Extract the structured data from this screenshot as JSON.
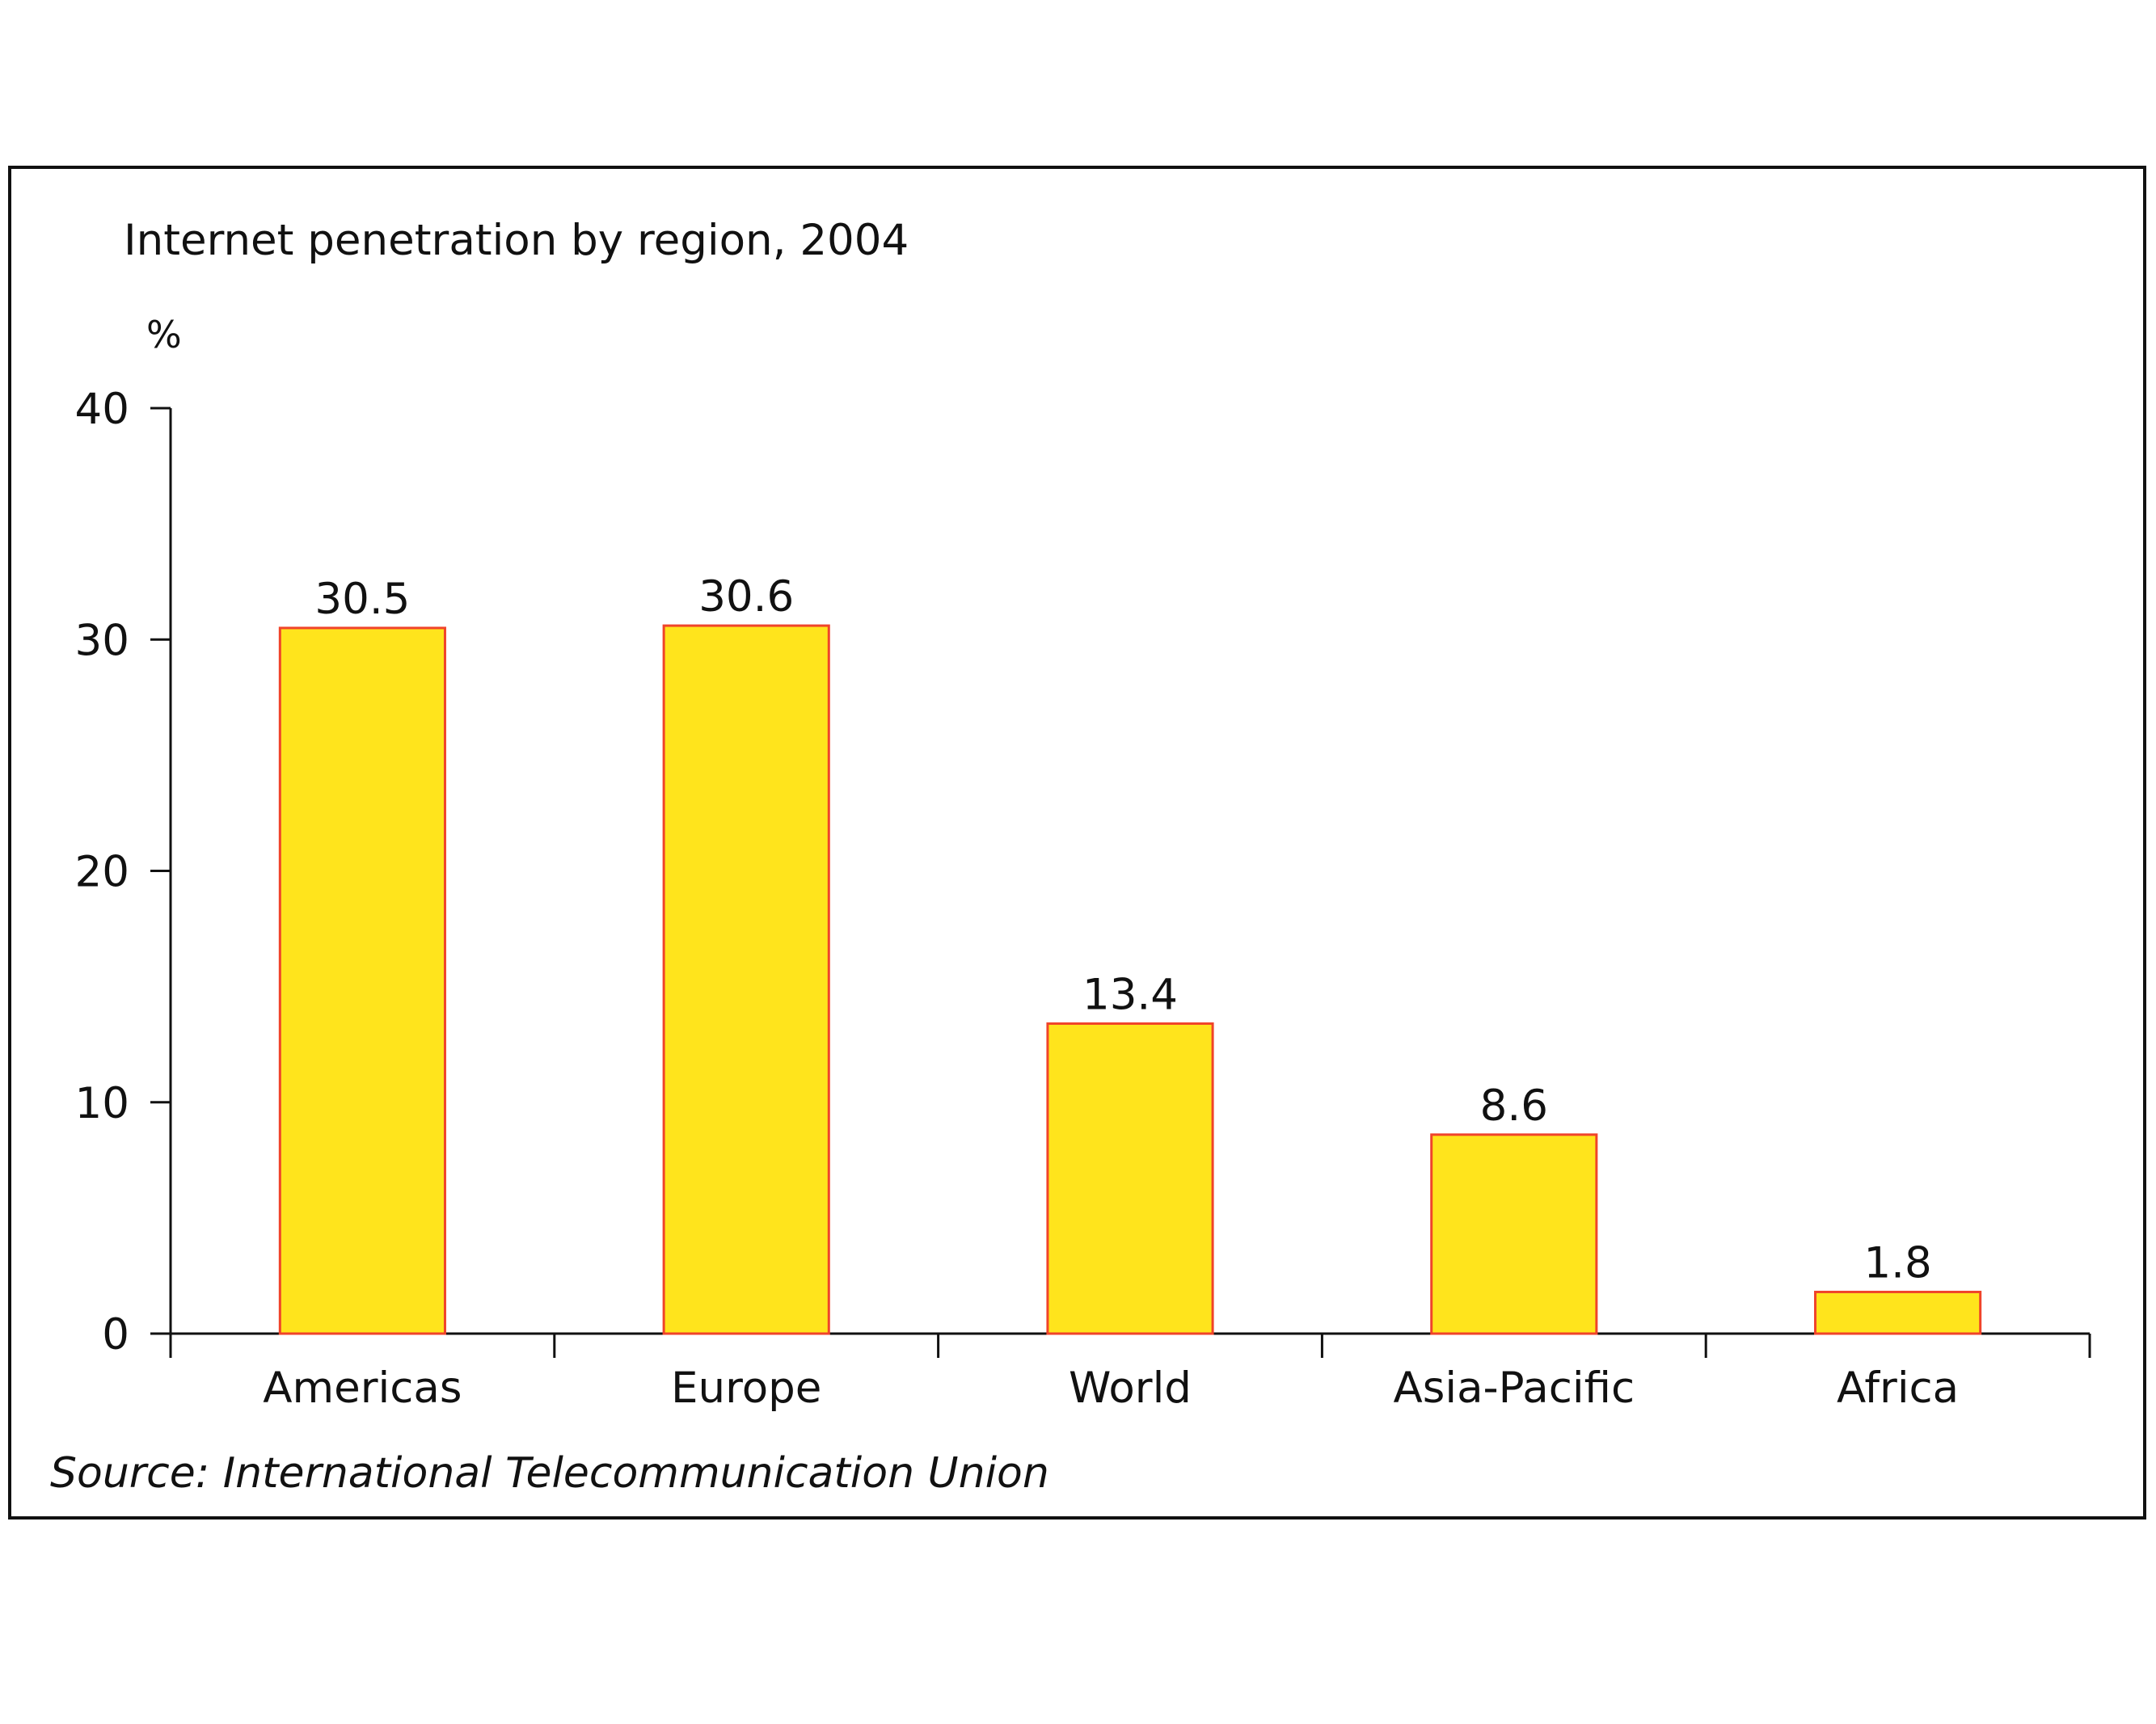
{
  "chart_data": {
    "type": "bar",
    "title": "Internet penetration by region, 2004",
    "ylabel": "%",
    "xlabel": "",
    "categories": [
      "Americas",
      "Europe",
      "World",
      "Asia-Pacific",
      "Africa"
    ],
    "values": [
      30.5,
      30.6,
      13.4,
      8.6,
      1.8
    ],
    "value_labels": [
      "30.5",
      "30.6",
      "13.4",
      "8.6",
      "1.8"
    ],
    "ylim": [
      0,
      40
    ],
    "yticks": [
      0,
      10,
      20,
      30,
      40
    ],
    "ytick_labels": [
      "0",
      "10",
      "20",
      "30",
      "40"
    ],
    "grid": false,
    "legend": "none",
    "bar_fill": "#FFE41C",
    "bar_stroke": "#F0442A",
    "source": "Source: International Telecommunication Union"
  }
}
